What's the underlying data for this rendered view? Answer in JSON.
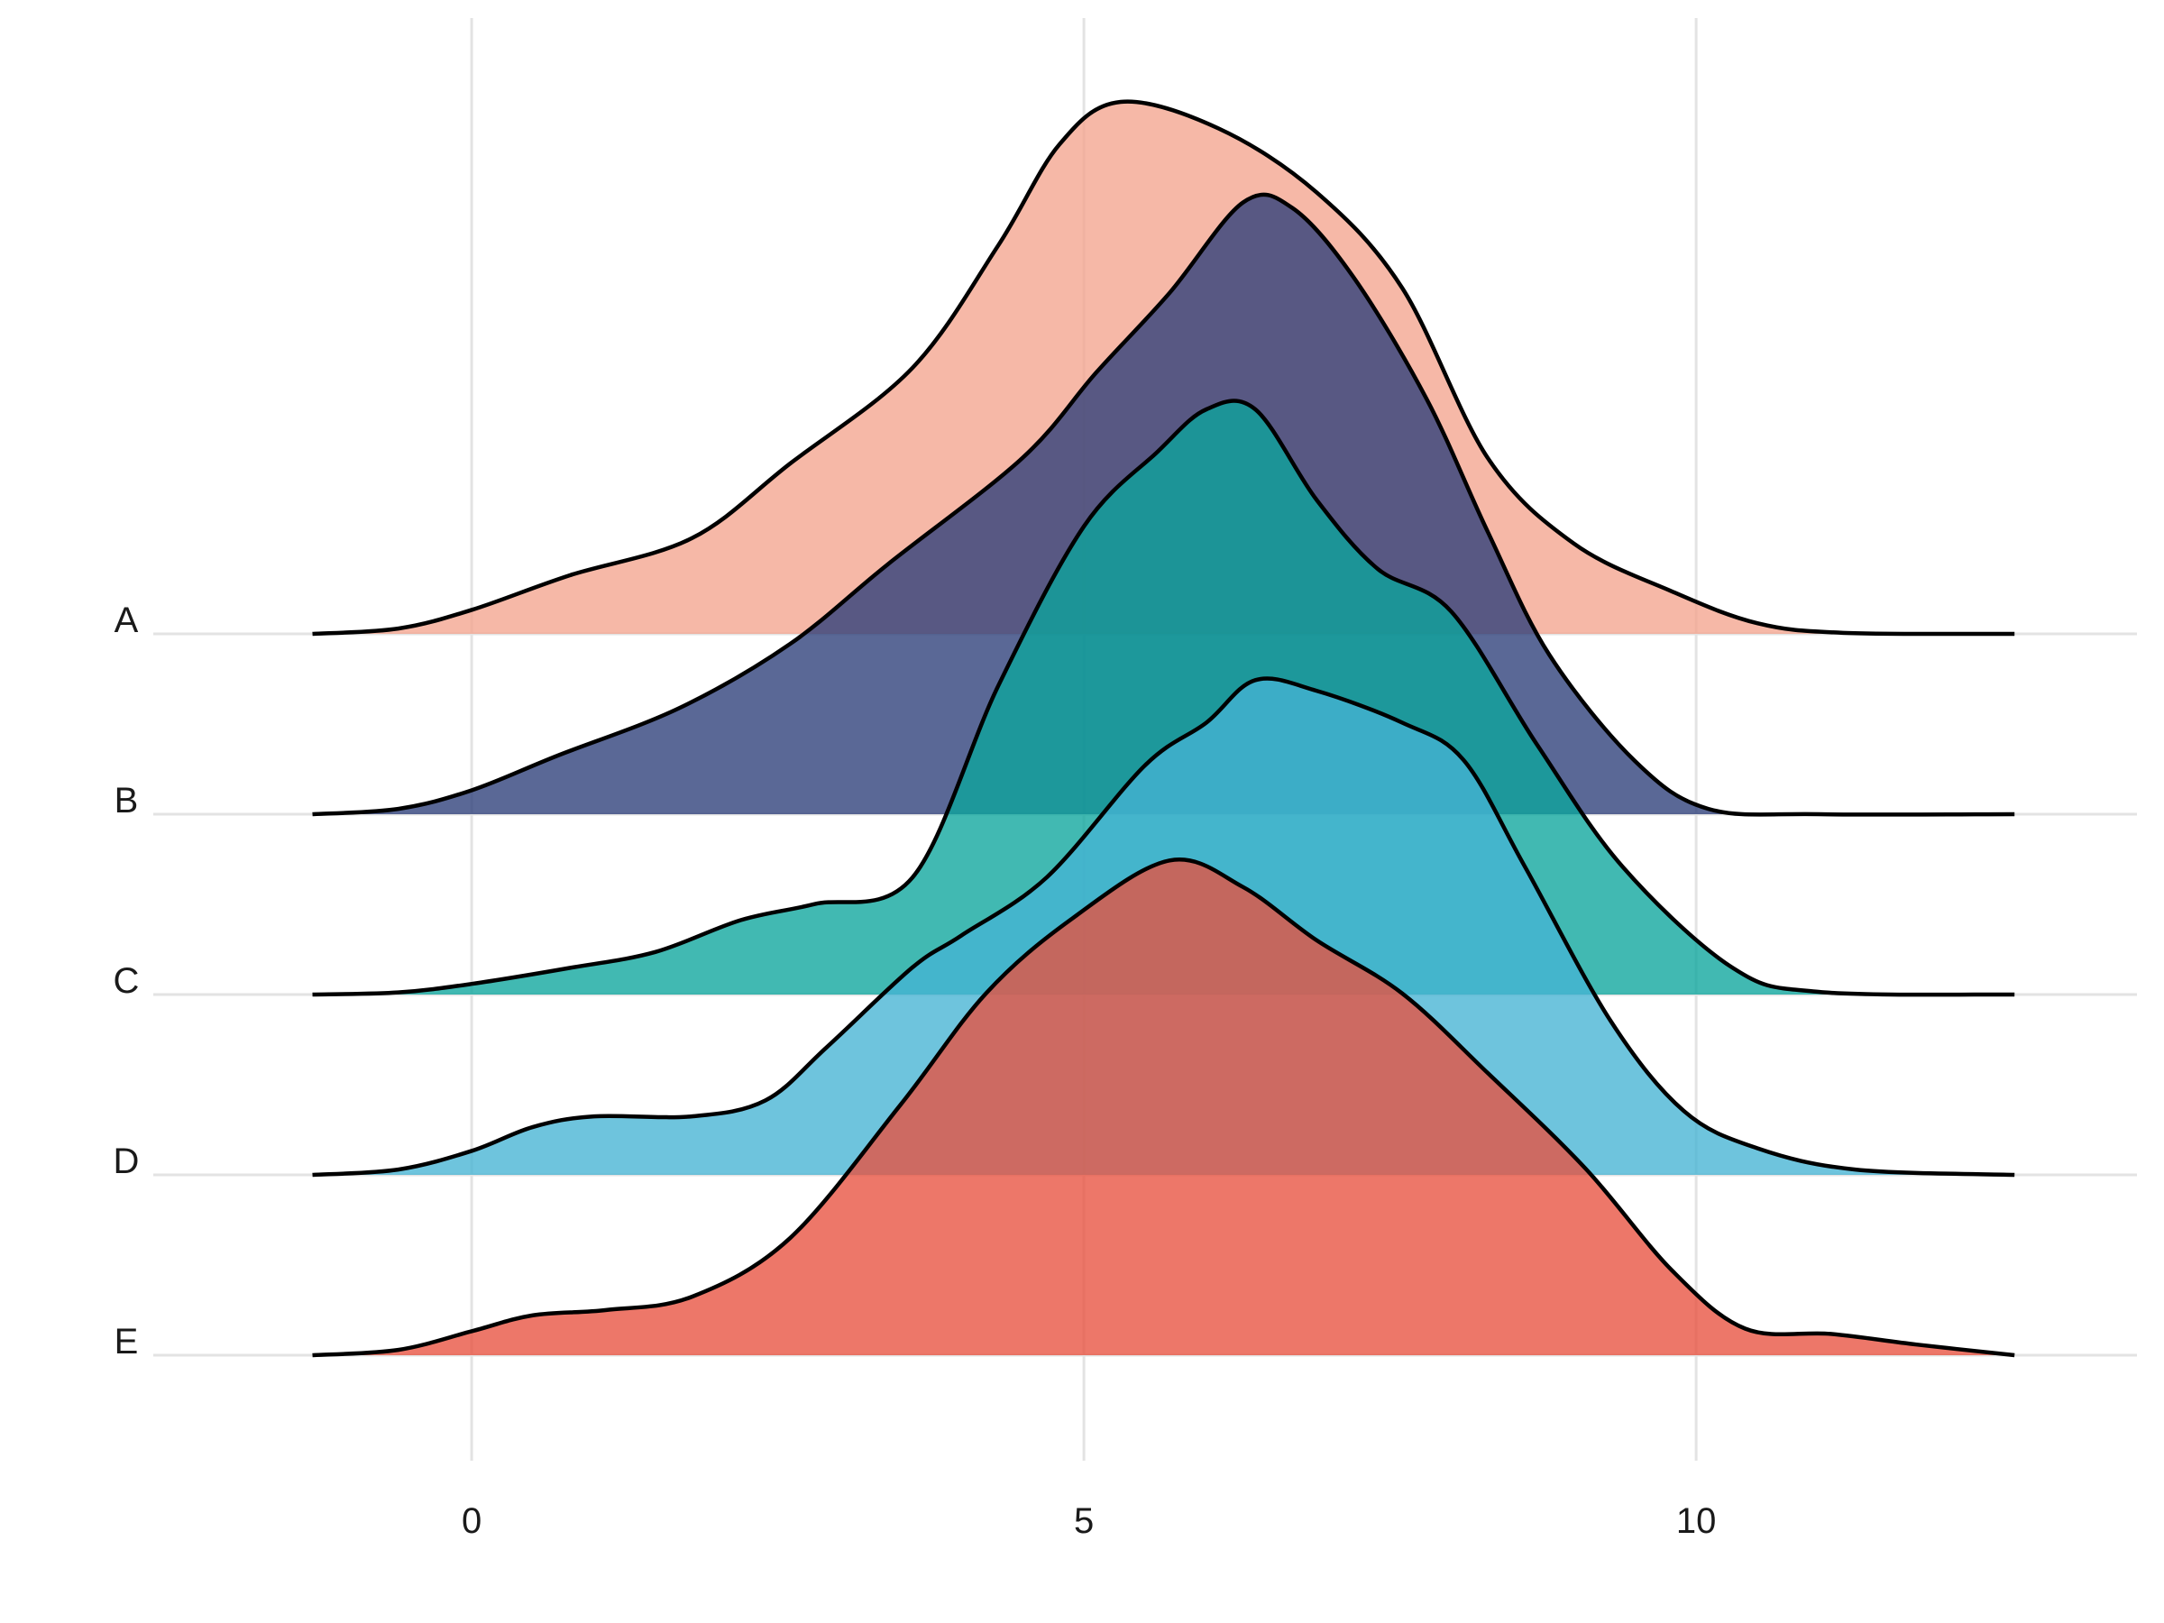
{
  "chart_data": {
    "type": "ridgeline",
    "title": "",
    "xlabel": "",
    "ylabel": "",
    "xlim": [
      -2.6,
      13.6
    ],
    "x_ticks": [
      0,
      5,
      10
    ],
    "x_tick_labels": [
      "0",
      "5",
      "10"
    ],
    "grid": true,
    "legend": "none",
    "density_domain": [
      -1.3,
      12.6
    ],
    "series": [
      {
        "name": "A",
        "fill": "#f4a48e",
        "points": [
          [
            -1.3,
            0
          ],
          [
            -0.6,
            0.01
          ],
          [
            0,
            0.045
          ],
          [
            0.8,
            0.11
          ],
          [
            1.8,
            0.18
          ],
          [
            2.6,
            0.32
          ],
          [
            3.6,
            0.5
          ],
          [
            4.3,
            0.73
          ],
          [
            4.8,
            0.92
          ],
          [
            5.3,
            1.0
          ],
          [
            6.1,
            0.95
          ],
          [
            6.9,
            0.83
          ],
          [
            7.6,
            0.65
          ],
          [
            8.3,
            0.33
          ],
          [
            9.0,
            0.17
          ],
          [
            9.8,
            0.08
          ],
          [
            10.5,
            0.02
          ],
          [
            11.2,
            0.002
          ],
          [
            12.6,
            0.0
          ]
        ]
      },
      {
        "name": "B",
        "fill": "#2c3e78",
        "points": [
          [
            -1.3,
            0
          ],
          [
            -0.6,
            0.01
          ],
          [
            0,
            0.045
          ],
          [
            0.7,
            0.11
          ],
          [
            1.7,
            0.2
          ],
          [
            2.6,
            0.32
          ],
          [
            3.4,
            0.47
          ],
          [
            4.5,
            0.67
          ],
          [
            5.1,
            0.83
          ],
          [
            5.7,
            0.98
          ],
          [
            6.3,
            1.15
          ],
          [
            6.7,
            1.14
          ],
          [
            7.2,
            1.01
          ],
          [
            7.8,
            0.78
          ],
          [
            8.3,
            0.53
          ],
          [
            8.8,
            0.3
          ],
          [
            9.5,
            0.1
          ],
          [
            10.1,
            0.01
          ],
          [
            11.0,
            0.0
          ],
          [
            12.6,
            0.0
          ]
        ]
      },
      {
        "name": "C",
        "fill": "#0ba59c",
        "points": [
          [
            -1.3,
            0
          ],
          [
            -0.6,
            0.004
          ],
          [
            0,
            0.02
          ],
          [
            0.8,
            0.05
          ],
          [
            1.5,
            0.08
          ],
          [
            2.2,
            0.14
          ],
          [
            2.8,
            0.17
          ],
          [
            3.6,
            0.22
          ],
          [
            4.3,
            0.58
          ],
          [
            5.0,
            0.88
          ],
          [
            5.6,
            1.02
          ],
          [
            6.0,
            1.1
          ],
          [
            6.4,
            1.1
          ],
          [
            6.9,
            0.93
          ],
          [
            7.4,
            0.8
          ],
          [
            8.0,
            0.72
          ],
          [
            8.7,
            0.47
          ],
          [
            9.4,
            0.24
          ],
          [
            10.3,
            0.05
          ],
          [
            11.0,
            0.005
          ],
          [
            12.6,
            0.0
          ]
        ]
      },
      {
        "name": "D",
        "fill": "#45b3d3",
        "points": [
          [
            -1.3,
            0
          ],
          [
            -0.6,
            0.01
          ],
          [
            0,
            0.045
          ],
          [
            0.5,
            0.09
          ],
          [
            1.0,
            0.11
          ],
          [
            1.8,
            0.11
          ],
          [
            2.4,
            0.14
          ],
          [
            2.9,
            0.24
          ],
          [
            3.6,
            0.39
          ],
          [
            4.0,
            0.45
          ],
          [
            4.7,
            0.56
          ],
          [
            5.5,
            0.77
          ],
          [
            6.0,
            0.85
          ],
          [
            6.4,
            0.93
          ],
          [
            6.9,
            0.91
          ],
          [
            7.6,
            0.85
          ],
          [
            8.1,
            0.78
          ],
          [
            8.6,
            0.58
          ],
          [
            9.3,
            0.29
          ],
          [
            9.9,
            0.12
          ],
          [
            10.5,
            0.05
          ],
          [
            11.3,
            0.01
          ],
          [
            12.6,
            0.0
          ]
        ]
      },
      {
        "name": "E",
        "fill": "#e8513f",
        "points": [
          [
            -1.3,
            0
          ],
          [
            -0.6,
            0.01
          ],
          [
            0,
            0.045
          ],
          [
            0.5,
            0.075
          ],
          [
            1.1,
            0.085
          ],
          [
            1.8,
            0.11
          ],
          [
            2.6,
            0.22
          ],
          [
            3.5,
            0.47
          ],
          [
            4.2,
            0.68
          ],
          [
            4.9,
            0.82
          ],
          [
            5.7,
            0.93
          ],
          [
            6.3,
            0.88
          ],
          [
            6.9,
            0.78
          ],
          [
            7.6,
            0.68
          ],
          [
            8.3,
            0.53
          ],
          [
            9.1,
            0.35
          ],
          [
            9.8,
            0.16
          ],
          [
            10.4,
            0.05
          ],
          [
            11.1,
            0.04
          ],
          [
            11.8,
            0.02
          ],
          [
            12.6,
            0.0
          ]
        ]
      }
    ]
  }
}
